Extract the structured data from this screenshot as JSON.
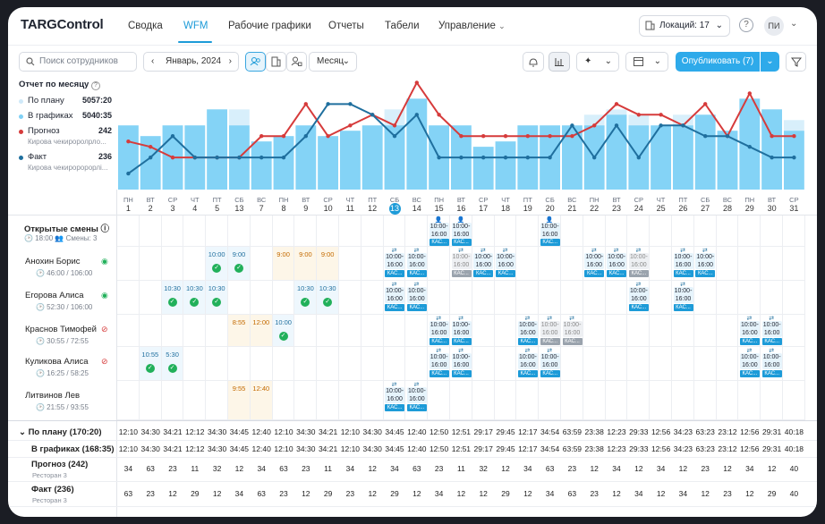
{
  "app": {
    "logo": "TARGControl"
  },
  "nav": [
    {
      "label": "Сводка"
    },
    {
      "label": "WFM"
    },
    {
      "label": "Рабочие графики"
    },
    {
      "label": "Отчеты"
    },
    {
      "label": "Табели"
    },
    {
      "label": "Управление"
    }
  ],
  "header": {
    "locations": "Локаций: 17",
    "help": "?",
    "avatar": "ПИ"
  },
  "toolbar": {
    "search_placeholder": "Поиск сотрудников",
    "month": "Январь, 2024",
    "period": "Месяц",
    "publish": "Опубликовать (7)"
  },
  "legend": {
    "title": "Отчет по месяцу",
    "items": [
      {
        "label": "По плану",
        "value": "5057:20",
        "color": "#cfe9f9",
        "sub": ""
      },
      {
        "label": "В графиках",
        "value": "5040:35",
        "color": "#7fd0f5",
        "sub": ""
      },
      {
        "label": "Прогноз",
        "value": "242",
        "color": "#d63b3b",
        "sub": "Кирова чекироролрло..."
      },
      {
        "label": "Факт",
        "value": "236",
        "color": "#1f6f9e",
        "sub": "Кирова чекироророрлі..."
      }
    ]
  },
  "chart_data": {
    "type": "bar",
    "categories": [
      "1",
      "2",
      "3",
      "4",
      "5",
      "13",
      "7",
      "8",
      "9",
      "10",
      "11",
      "12",
      "13",
      "14",
      "15",
      "16",
      "17",
      "18",
      "19",
      "20",
      "21",
      "22",
      "23",
      "24",
      "25",
      "26",
      "27",
      "28",
      "29",
      "30",
      "31"
    ],
    "series": [
      {
        "name": "По плану",
        "values": [
          12,
          10,
          12,
          12,
          15,
          15,
          9,
          10,
          12,
          10,
          11,
          12,
          15,
          17,
          12,
          12,
          8,
          9,
          12,
          12,
          12,
          14,
          15,
          14,
          12,
          14,
          14,
          11,
          17,
          15,
          13
        ]
      },
      {
        "name": "В графиках",
        "values": [
          12,
          10,
          12,
          12,
          15,
          12,
          9,
          10,
          12,
          10,
          11,
          12,
          12,
          17,
          12,
          12,
          8,
          9,
          12,
          12,
          12,
          12,
          14,
          12,
          12,
          12,
          14,
          11,
          17,
          15,
          11
        ]
      },
      {
        "name": "Прогноз",
        "values": [
          9,
          8,
          6,
          6,
          6,
          6,
          10,
          10,
          16,
          10,
          12,
          14,
          12,
          20,
          14,
          10,
          10,
          10,
          10,
          10,
          10,
          12,
          16,
          14,
          14,
          12,
          16,
          10,
          18,
          10,
          10
        ]
      },
      {
        "name": "Факт",
        "values": [
          3,
          6,
          10,
          6,
          6,
          6,
          6,
          6,
          10,
          16,
          16,
          14,
          10,
          14,
          6,
          6,
          6,
          6,
          6,
          6,
          12,
          6,
          12,
          6,
          12,
          12,
          10,
          10,
          8,
          6,
          6
        ]
      }
    ]
  },
  "days": [
    {
      "n": "ПН",
      "d": "1"
    },
    {
      "n": "ВТ",
      "d": "2"
    },
    {
      "n": "СР",
      "d": "3"
    },
    {
      "n": "ЧТ",
      "d": "4"
    },
    {
      "n": "ПТ",
      "d": "5"
    },
    {
      "n": "СБ",
      "d": "13"
    },
    {
      "n": "ВС",
      "d": "7"
    },
    {
      "n": "ПН",
      "d": "8"
    },
    {
      "n": "ВТ",
      "d": "9"
    },
    {
      "n": "СР",
      "d": "10"
    },
    {
      "n": "ЧТ",
      "d": "11"
    },
    {
      "n": "ПТ",
      "d": "12"
    },
    {
      "n": "СБ",
      "d": "13"
    },
    {
      "n": "ВС",
      "d": "14"
    },
    {
      "n": "ПН",
      "d": "15"
    },
    {
      "n": "ВТ",
      "d": "16"
    },
    {
      "n": "СР",
      "d": "17"
    },
    {
      "n": "ЧТ",
      "d": "18"
    },
    {
      "n": "ПТ",
      "d": "19"
    },
    {
      "n": "СБ",
      "d": "20"
    },
    {
      "n": "ВС",
      "d": "21"
    },
    {
      "n": "ПН",
      "d": "22"
    },
    {
      "n": "ВТ",
      "d": "23"
    },
    {
      "n": "СР",
      "d": "24"
    },
    {
      "n": "ЧТ",
      "d": "25"
    },
    {
      "n": "ПТ",
      "d": "26"
    },
    {
      "n": "СБ",
      "d": "27"
    },
    {
      "n": "ВС",
      "d": "28"
    },
    {
      "n": "ПН",
      "d": "29"
    },
    {
      "n": "ВТ",
      "d": "30"
    },
    {
      "n": "СР",
      "d": "31"
    }
  ],
  "open_shifts": {
    "title": "Открытые смены",
    "time": "18:00",
    "count": "Смены: 3",
    "days": [
      14,
      15,
      19
    ]
  },
  "shift": {
    "time": "10:00-\n16:00",
    "tag": "КАС..."
  },
  "employees": [
    {
      "name": "Анохин Борис",
      "hours": "46:00 / 106:00",
      "visible": true,
      "times": [
        [
          4,
          "10:00",
          "check"
        ],
        [
          5,
          "9:00",
          "check"
        ],
        [
          7,
          "9:00",
          "orange"
        ],
        [
          8,
          "9:00",
          "orange"
        ],
        [
          9,
          "9:00",
          "orange"
        ]
      ],
      "shifts": [
        [
          12,
          "b"
        ],
        [
          13,
          "b"
        ],
        [
          15,
          "g"
        ],
        [
          16,
          "b"
        ],
        [
          17,
          "b"
        ],
        [
          21,
          "b"
        ],
        [
          22,
          "b"
        ],
        [
          23,
          "g"
        ],
        [
          25,
          "b"
        ],
        [
          26,
          "b"
        ]
      ]
    },
    {
      "name": "Егорова Алиса",
      "hours": "52:30 / 106:00",
      "visible": true,
      "times": [
        [
          2,
          "10:30",
          "check"
        ],
        [
          3,
          "10:30",
          "check"
        ],
        [
          4,
          "10:30",
          "check"
        ],
        [
          8,
          "10:30",
          "check"
        ],
        [
          9,
          "10:30",
          "check"
        ]
      ],
      "shifts": [
        [
          12,
          "b"
        ],
        [
          13,
          "b"
        ],
        [
          23,
          "b"
        ],
        [
          25,
          "b"
        ]
      ]
    },
    {
      "name": "Краснов Тимофей",
      "hours": "30:55 / 72:55",
      "visible": false,
      "times": [
        [
          5,
          "8:55",
          "orange"
        ],
        [
          6,
          "12:00",
          "orange"
        ],
        [
          7,
          "10:00",
          "check"
        ]
      ],
      "shifts": [
        [
          14,
          "b"
        ],
        [
          15,
          "b"
        ],
        [
          18,
          "b"
        ],
        [
          19,
          "g"
        ],
        [
          20,
          "g"
        ],
        [
          28,
          "b"
        ],
        [
          29,
          "b"
        ]
      ]
    },
    {
      "name": "Куликова Алиса",
      "hours": "16:25 / 58:25",
      "visible": false,
      "times": [
        [
          1,
          "10:55",
          "check"
        ],
        [
          2,
          "5:30",
          "check"
        ]
      ],
      "shifts": [
        [
          14,
          "b"
        ],
        [
          15,
          "b"
        ],
        [
          18,
          "b"
        ],
        [
          19,
          "b"
        ],
        [
          28,
          "b"
        ],
        [
          29,
          "b"
        ]
      ]
    },
    {
      "name": "Литвинов Лев",
      "hours": "21:55 / 93:55",
      "visible": null,
      "times": [
        [
          5,
          "9:55",
          "orange"
        ],
        [
          6,
          "12:40",
          "orange"
        ]
      ],
      "shifts": [
        [
          12,
          "b"
        ],
        [
          13,
          "b"
        ]
      ]
    }
  ],
  "summary": [
    {
      "label": "По плану (170:20)",
      "sub": "",
      "values": [
        "12:10",
        "34:30",
        "34:21",
        "12:12",
        "34:30",
        "34:45",
        "12:40",
        "12:10",
        "34:30",
        "34:21",
        "12:10",
        "34:30",
        "34:45",
        "12:40",
        "12:50",
        "12:51",
        "29:17",
        "29:45",
        "12:17",
        "34:54",
        "63:59",
        "23:38",
        "12:23",
        "29:33",
        "12:56",
        "34:23",
        "63:23",
        "23:12",
        "12:56",
        "29:31",
        "40:18"
      ]
    },
    {
      "label": "В графиках (168:35)",
      "sub": "",
      "values": [
        "12:10",
        "34:30",
        "34:21",
        "12:12",
        "34:30",
        "34:45",
        "12:40",
        "12:10",
        "34:30",
        "34:21",
        "12:10",
        "34:30",
        "34:45",
        "12:40",
        "12:50",
        "12:51",
        "29:17",
        "29:45",
        "12:17",
        "34:54",
        "63:59",
        "23:38",
        "12:23",
        "29:33",
        "12:56",
        "34:23",
        "63:23",
        "23:12",
        "12:56",
        "29:31",
        "40:18"
      ]
    },
    {
      "label": "Прогноз (242)",
      "sub": "Ресторан 3",
      "values": [
        "34",
        "63",
        "23",
        "11",
        "32",
        "12",
        "34",
        "63",
        "23",
        "11",
        "34",
        "12",
        "34",
        "63",
        "23",
        "11",
        "32",
        "12",
        "34",
        "63",
        "23",
        "12",
        "34",
        "12",
        "34",
        "12",
        "23",
        "12",
        "34",
        "12",
        "40"
      ]
    },
    {
      "label": "Факт (236)",
      "sub": "Ресторан 3",
      "values": [
        "63",
        "23",
        "12",
        "29",
        "12",
        "34",
        "63",
        "23",
        "12",
        "29",
        "23",
        "12",
        "29",
        "12",
        "34",
        "12",
        "12",
        "29",
        "12",
        "34",
        "63",
        "23",
        "12",
        "34",
        "12",
        "34",
        "12",
        "23",
        "12",
        "29",
        "40"
      ]
    }
  ]
}
